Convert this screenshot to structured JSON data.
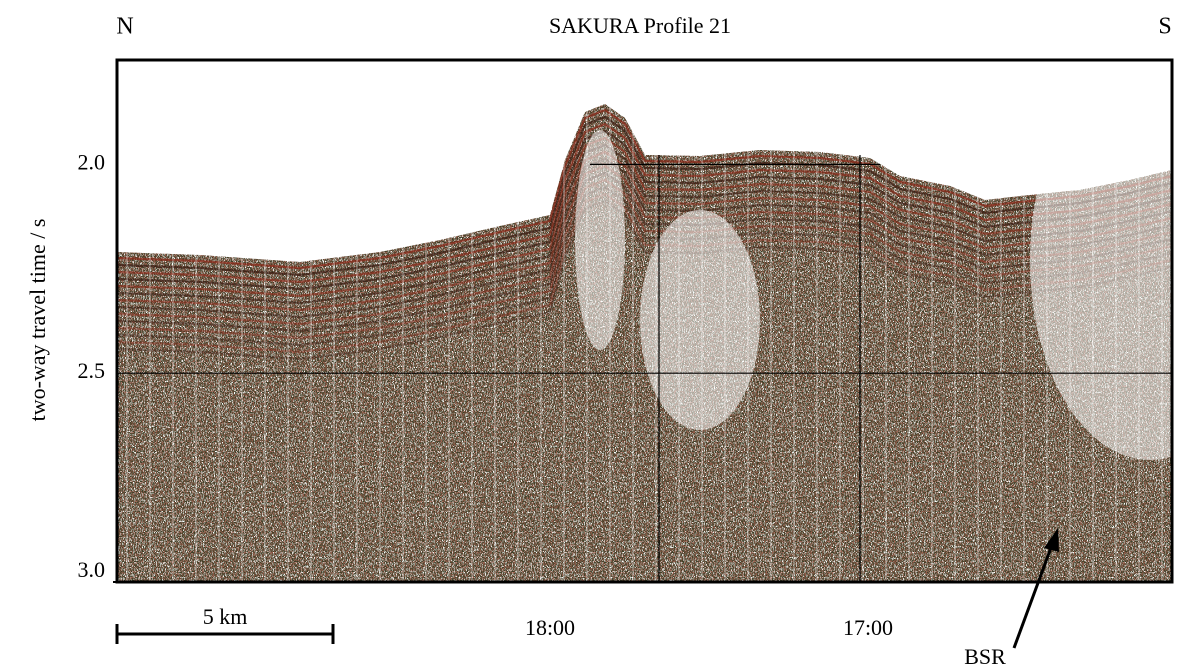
{
  "title": "SAKURA Profile 21",
  "left_label": "N",
  "right_label": "S",
  "y_axis": {
    "label": "two-way travel time / s",
    "lim": [
      1.75,
      3.0
    ],
    "ticks": [
      {
        "value": 2,
        "label": "2.0"
      },
      {
        "value": 2.5,
        "label": "2.5"
      },
      {
        "value": 3,
        "label": "3.0"
      }
    ]
  },
  "time_labels": [
    "18:00",
    "17:00"
  ],
  "scale_bar": "5 km",
  "annotation": "BSR"
}
